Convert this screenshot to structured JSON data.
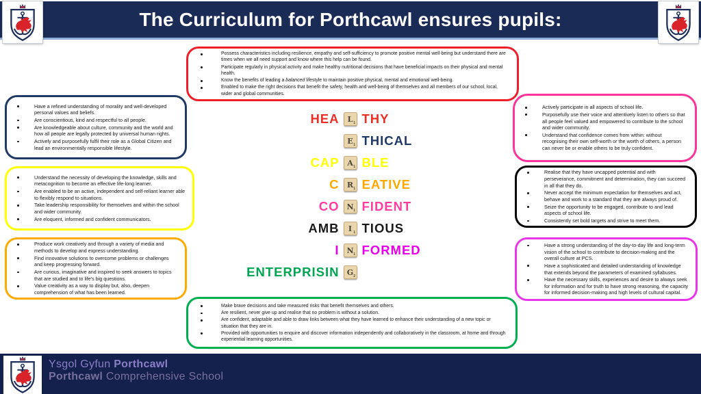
{
  "theme": {
    "header_bg": "#1a2b56",
    "header_underline": "#8fa9d8",
    "title_color": "#ffffff",
    "footer_bg": "#14214d",
    "footer_purple": "#8b7ec6",
    "footer_muted": "#78709c",
    "tile_bg": "#ead6ad"
  },
  "header": {
    "title": "The Curriculum for Porthcawl ensures pupils:"
  },
  "acrostic": {
    "vertical_word": "LEARNING",
    "rows": [
      {
        "pre": "HEA",
        "tile": "L",
        "post": "THY",
        "color": "#ee2e24",
        "points": "1"
      },
      {
        "pre": "",
        "tile": "E",
        "post": "THICAL",
        "color": "#1f3864",
        "points": "1"
      },
      {
        "pre": "CAP",
        "tile": "A",
        "post": "BLE",
        "color": "#ffff00",
        "points": "1"
      },
      {
        "pre": "C",
        "tile": "R",
        "post": "EATIVE",
        "color": "#ffa800",
        "points": "1"
      },
      {
        "pre": "CO",
        "tile": "N",
        "post": "FIDENT",
        "color": "#ff3d9e",
        "points": "1"
      },
      {
        "pre": "AMB",
        "tile": "I",
        "post": "TIOUS",
        "color": "#1a1a1a",
        "points": "1"
      },
      {
        "pre": "I",
        "tile": "N",
        "post": "FORMED",
        "color": "#e800e8",
        "points": "1"
      },
      {
        "pre": "ENTERPRISIN",
        "tile": "G",
        "post": "",
        "color": "#00a651",
        "points": "2"
      }
    ]
  },
  "boxes": [
    {
      "name": "healthy",
      "border": "#f01e28",
      "bullets": [
        "Possess characteristics including resilience, empathy and self-sufficiency to promote positive mental well-being but understand there are times when we all need support and know where this help can be found.",
        "Participate regularly in physical activity and make healthy nutritional decisions that have beneficial impacts on their physical and mental health.",
        "Know the benefits of leading a *balanced* lifestyle to maintain positive physical, mental and emotional well-being.",
        "Enabled to make the right decisions that benefit the safety, health and well-being of themselves and all members of our school, local, wider and global communities."
      ]
    },
    {
      "name": "ethical",
      "border": "#1f3864",
      "bullets": [
        "Have a refined understanding of morality and well-developed personal values and beliefs.",
        "Are conscientious, kind and respectful to all people.",
        "Are knowledgeable about culture, community and the world and how all people are legally protected by universal human rights.",
        "Actively and purposefully fulfil their role as a Global Citizen and lead an environmentally responsible lifestyle."
      ]
    },
    {
      "name": "capable",
      "border": "#ffff00",
      "bullets": [
        "Understand the necessity of developing the knowledge, skills and metacognition to become an effective life-long learner.",
        "Are enabled to be an active, independent and self-reliant learner able to flexibly respond to situations.",
        "Take leadership responsibility for themselves and within the school and wider community.",
        "Are eloquent, informed and confident communicators."
      ]
    },
    {
      "name": "creative",
      "border": "#ffaa00",
      "bullets": [
        "Produce work creatively and through a variety of media and methods to develop and express understanding.",
        "Find innovative solutions to overcome problems or challenges and keep progressing forward.",
        "Are curious, imaginative and inspired to seek answers to topics that are studied and to life's big questions.",
        "Value creativity as a way to display but, also, deepen comprehension of what has been learned."
      ]
    },
    {
      "name": "confident",
      "border": "#ff3399",
      "bullets": [
        "Actively participate in all aspects of school life.",
        "Purposefully use their voice and attentively listen to others so that all people feel valued and empowered to contribute to the school and wider community.",
        "Understand that confidence comes from within: without recognising their own self-worth or the worth of others, a person can never be or enable others to be truly confident."
      ]
    },
    {
      "name": "ambitious",
      "border": "#000000",
      "bullets": [
        "Realise that they have uncapped potential and with perseverance, commitment and determination, they can succeed in all that they do.",
        "Never accept the minimum expectation for themselves and act, behave and work to a standard that they are always proud of.",
        "Seize the opportunity to be engaged, contribute to and lead aspects of school life.",
        "Consistently set bold targets and strive to meet them."
      ]
    },
    {
      "name": "informed",
      "border": "#e835e8",
      "bullets": [
        "Have a strong understanding of the day-to-day life and long-term vision of the school to contribute to decision-making and the overall culture at PCS.",
        "Have a sophisticated and detailed understanding of knowledge that extends beyond the parameters of examined syllabuses.",
        "Have the necessary skills, experiences and desire to always seek for information and for truth to have strong reasoning, the capacity for informed decision-making and high levels of cultural capital."
      ]
    },
    {
      "name": "enterprising",
      "border": "#00b050",
      "bullets": [
        "Make brave decisions and take measured risks that benefit themselves and others.",
        "Are resilient, never give up and realise that no problem is without a solution.",
        "Are confident, adaptable and able to draw links between what they have learned to enhance their understanding of a new topic or situation that they are in.",
        "Provided with opportunities to enquire and discover information independently and collaboratively in the classroom, at home and through experiential learning opportunities."
      ]
    }
  ],
  "footer": {
    "line1": "Ysgol Gyfun **Porthcawl**",
    "line2": "**Porthcawl** Comprehensive School"
  }
}
